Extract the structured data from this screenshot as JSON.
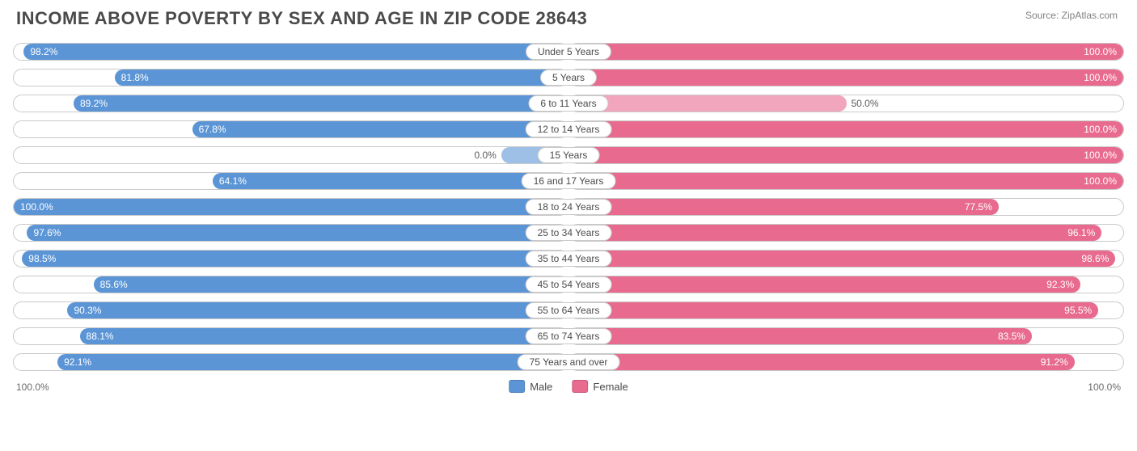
{
  "chart": {
    "type": "diverging-bar",
    "title": "INCOME ABOVE POVERTY BY SEX AND AGE IN ZIP CODE 28643",
    "source": "Source: ZipAtlas.com",
    "background_color": "#ffffff",
    "track_border_color": "#c9c9c9",
    "title_color": "#4a4a4a",
    "title_fontsize": 22,
    "label_fontsize": 12,
    "axis": {
      "left": "100.0%",
      "right": "100.0%",
      "max": 100.0
    },
    "legend": [
      {
        "label": "Male",
        "color": "#5b95d6"
      },
      {
        "label": "Female",
        "color": "#e86a8f"
      }
    ],
    "male_color": "#5b95d6",
    "female_color": "#e86a8f",
    "male_light": "#9ec0e6",
    "female_light": "#f2a6bd",
    "rows": [
      {
        "age": "Under 5 Years",
        "male": 98.2,
        "female": 100.0
      },
      {
        "age": "5 Years",
        "male": 81.8,
        "female": 100.0
      },
      {
        "age": "6 to 11 Years",
        "male": 89.2,
        "female": 50.0,
        "female_light": true
      },
      {
        "age": "12 to 14 Years",
        "male": 67.8,
        "female": 100.0
      },
      {
        "age": "15 Years",
        "male": 0.0,
        "female": 100.0,
        "male_light": true,
        "male_stub": 12
      },
      {
        "age": "16 and 17 Years",
        "male": 64.1,
        "female": 100.0
      },
      {
        "age": "18 to 24 Years",
        "male": 100.0,
        "female": 77.5
      },
      {
        "age": "25 to 34 Years",
        "male": 97.6,
        "female": 96.1
      },
      {
        "age": "35 to 44 Years",
        "male": 98.5,
        "female": 98.6
      },
      {
        "age": "45 to 54 Years",
        "male": 85.6,
        "female": 92.3
      },
      {
        "age": "55 to 64 Years",
        "male": 90.3,
        "female": 95.5
      },
      {
        "age": "65 to 74 Years",
        "male": 88.1,
        "female": 83.5
      },
      {
        "age": "75 Years and over",
        "male": 92.1,
        "female": 91.2
      }
    ]
  }
}
